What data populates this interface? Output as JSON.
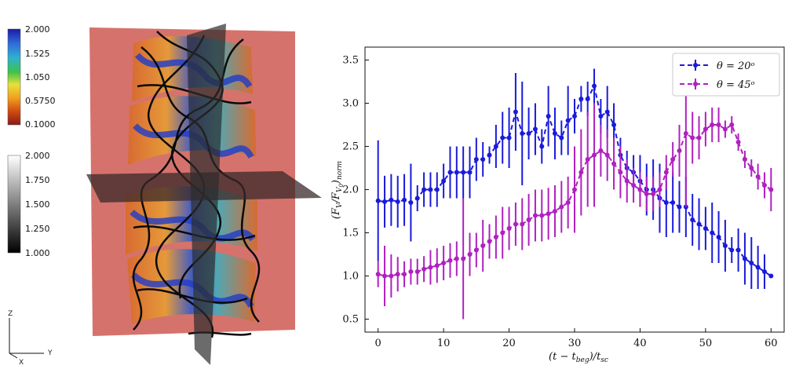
{
  "colorbar_color": {
    "ticks": [
      "2.000",
      "1.525",
      "1.050",
      "0.5750",
      "0.1000"
    ],
    "stops": [
      "#1a1aa8",
      "#2f6bd8",
      "#2fb0d0",
      "#3ec24a",
      "#e8e03a",
      "#f0a020",
      "#d04a10",
      "#8a1a1a"
    ]
  },
  "colorbar_gray": {
    "ticks": [
      "2.000",
      "1.750",
      "1.500",
      "1.250",
      "1.000"
    ]
  },
  "coord_axes": {
    "z": "Z",
    "x": "X",
    "y": "Y"
  },
  "chart_data": {
    "type": "line",
    "xlabel": "(t − t_beg)/t_sc",
    "ylabel": "(F_V/F_V0)_norm",
    "xlim": [
      -2,
      62
    ],
    "ylim": [
      0.35,
      3.65
    ],
    "xticks": [
      0,
      10,
      20,
      30,
      40,
      50,
      60
    ],
    "yticks": [
      0.5,
      1.0,
      1.5,
      2.0,
      2.5,
      3.0,
      3.5
    ],
    "xtick_labels": [
      "0",
      "10",
      "20",
      "30",
      "40",
      "50",
      "60"
    ],
    "ytick_labels": [
      "0.5",
      "1.0",
      "1.5",
      "2.0",
      "2.5",
      "3.0",
      "3.5"
    ],
    "legend_position": "top-right",
    "series": [
      {
        "name": "θ = 20°",
        "legend_label": "θ = 20ᵒ",
        "color": "#1a1adc",
        "x": [
          0,
          1,
          2,
          3,
          4,
          5,
          6,
          7,
          8,
          9,
          10,
          11,
          12,
          13,
          14,
          15,
          16,
          17,
          18,
          19,
          20,
          21,
          22,
          23,
          24,
          25,
          26,
          27,
          28,
          29,
          30,
          31,
          32,
          33,
          34,
          35,
          36,
          37,
          38,
          39,
          40,
          41,
          42,
          43,
          44,
          45,
          46,
          47,
          48,
          49,
          50,
          51,
          52,
          53,
          54,
          55,
          56,
          57,
          58,
          59,
          60
        ],
        "y": [
          1.87,
          1.86,
          1.88,
          1.86,
          1.88,
          1.85,
          1.9,
          2.0,
          2.0,
          2.0,
          2.1,
          2.2,
          2.2,
          2.2,
          2.2,
          2.35,
          2.35,
          2.4,
          2.5,
          2.6,
          2.6,
          2.9,
          2.65,
          2.65,
          2.7,
          2.5,
          2.85,
          2.65,
          2.6,
          2.8,
          2.85,
          3.05,
          3.05,
          3.2,
          2.85,
          2.9,
          2.75,
          2.4,
          2.25,
          2.2,
          2.1,
          2.0,
          2.0,
          1.9,
          1.85,
          1.85,
          1.8,
          1.8,
          1.65,
          1.6,
          1.55,
          1.5,
          1.45,
          1.35,
          1.3,
          1.3,
          1.2,
          1.15,
          1.1,
          1.05,
          1.0
        ],
        "err": [
          0.7,
          0.3,
          0.3,
          0.3,
          0.3,
          0.45,
          0.15,
          0.2,
          0.2,
          0.2,
          0.2,
          0.3,
          0.3,
          0.3,
          0.3,
          0.25,
          0.2,
          0.1,
          0.25,
          0.3,
          0.35,
          0.45,
          0.6,
          0.3,
          0.3,
          0.2,
          0.35,
          0.3,
          0.2,
          0.4,
          0.2,
          0.15,
          0.2,
          0.2,
          0.2,
          0.3,
          0.25,
          0.2,
          0.2,
          0.2,
          0.3,
          0.3,
          0.35,
          0.4,
          0.4,
          0.35,
          0.3,
          0.35,
          0.3,
          0.3,
          0.25,
          0.35,
          0.3,
          0.3,
          0.15,
          0.25,
          0.3,
          0.3,
          0.25,
          0.2,
          0.0
        ]
      },
      {
        "name": "θ = 45°",
        "legend_label": "θ = 45ᵒ",
        "color": "#b020c0",
        "x": [
          0,
          1,
          2,
          3,
          4,
          5,
          6,
          7,
          8,
          9,
          10,
          11,
          12,
          13,
          14,
          15,
          16,
          17,
          18,
          19,
          20,
          21,
          22,
          23,
          24,
          25,
          26,
          27,
          28,
          29,
          30,
          31,
          32,
          33,
          34,
          35,
          36,
          37,
          38,
          39,
          40,
          41,
          42,
          43,
          44,
          45,
          46,
          47,
          48,
          49,
          50,
          51,
          52,
          53,
          54,
          55,
          56,
          57,
          58,
          59,
          60
        ],
        "y": [
          1.02,
          1.0,
          1.0,
          1.02,
          1.02,
          1.05,
          1.05,
          1.08,
          1.1,
          1.12,
          1.15,
          1.18,
          1.2,
          1.2,
          1.25,
          1.3,
          1.35,
          1.4,
          1.45,
          1.5,
          1.55,
          1.6,
          1.6,
          1.65,
          1.7,
          1.7,
          1.72,
          1.75,
          1.8,
          1.85,
          2.0,
          2.2,
          2.35,
          2.4,
          2.45,
          2.4,
          2.3,
          2.2,
          2.1,
          2.05,
          2.0,
          1.95,
          1.95,
          2.0,
          2.2,
          2.35,
          2.45,
          2.65,
          2.6,
          2.6,
          2.7,
          2.75,
          2.75,
          2.7,
          2.75,
          2.55,
          2.35,
          2.25,
          2.15,
          2.05,
          2.0
        ],
        "err": [
          0.15,
          0.35,
          0.25,
          0.2,
          0.15,
          0.15,
          0.15,
          0.15,
          0.2,
          0.2,
          0.2,
          0.2,
          0.2,
          0.7,
          0.25,
          0.2,
          0.3,
          0.2,
          0.25,
          0.3,
          0.25,
          0.25,
          0.3,
          0.3,
          0.3,
          0.3,
          0.3,
          0.3,
          0.3,
          0.3,
          0.5,
          0.5,
          0.55,
          0.6,
          0.3,
          0.3,
          0.3,
          0.3,
          0.25,
          0.2,
          0.2,
          0.2,
          0.2,
          0.2,
          0.2,
          0.2,
          0.3,
          0.85,
          0.3,
          0.25,
          0.2,
          0.2,
          0.2,
          0.1,
          0.1,
          0.1,
          0.1,
          0.1,
          0.15,
          0.15,
          0.25
        ]
      }
    ]
  }
}
